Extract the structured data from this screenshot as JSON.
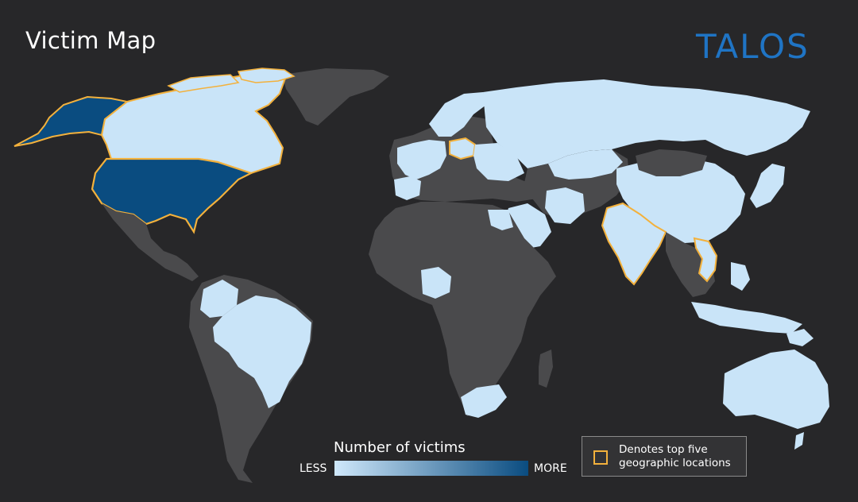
{
  "header": {
    "title": "Victim Map",
    "logo_text": "TALOS"
  },
  "legend": {
    "title": "Number of victims",
    "low_label": "LESS",
    "high_label": "MORE",
    "color_low": "#cfe8fb",
    "color_high": "#0a4c80"
  },
  "key": {
    "line1": "Denotes top five",
    "line2": "geographic locations",
    "outline_color": "#f3b13c"
  },
  "colors": {
    "background": "#272729",
    "no_data_land": "#4a4a4c",
    "low_victims": "#c9e4f8",
    "high_victims": "#0a4c80",
    "top_five_outline": "#f3b13c",
    "logo": "#1f74c4"
  },
  "map": {
    "regions": [
      {
        "name": "United States",
        "level": "high",
        "top_five": true
      },
      {
        "name": "Alaska",
        "level": "high",
        "top_five": true
      },
      {
        "name": "Canada",
        "level": "low",
        "top_five": true
      },
      {
        "name": "Poland",
        "level": "low",
        "top_five": true
      },
      {
        "name": "India",
        "level": "low",
        "top_five": true
      },
      {
        "name": "Vietnam",
        "level": "low",
        "top_five": true
      },
      {
        "name": "Brazil",
        "level": "low",
        "top_five": false
      },
      {
        "name": "Colombia",
        "level": "low",
        "top_five": false
      },
      {
        "name": "Russia",
        "level": "low",
        "top_five": false
      },
      {
        "name": "China",
        "level": "low",
        "top_five": false
      },
      {
        "name": "Australia",
        "level": "low",
        "top_five": false
      },
      {
        "name": "South Africa",
        "level": "low",
        "top_five": false
      },
      {
        "name": "Nigeria",
        "level": "low",
        "top_five": false
      },
      {
        "name": "Western Europe",
        "level": "low",
        "top_five": false
      },
      {
        "name": "Scandinavia",
        "level": "low",
        "top_five": false
      },
      {
        "name": "Saudi Arabia",
        "level": "low",
        "top_five": false
      },
      {
        "name": "Iran",
        "level": "low",
        "top_five": false
      },
      {
        "name": "Indonesia",
        "level": "low",
        "top_five": false
      },
      {
        "name": "Japan",
        "level": "low",
        "top_five": false
      }
    ]
  }
}
